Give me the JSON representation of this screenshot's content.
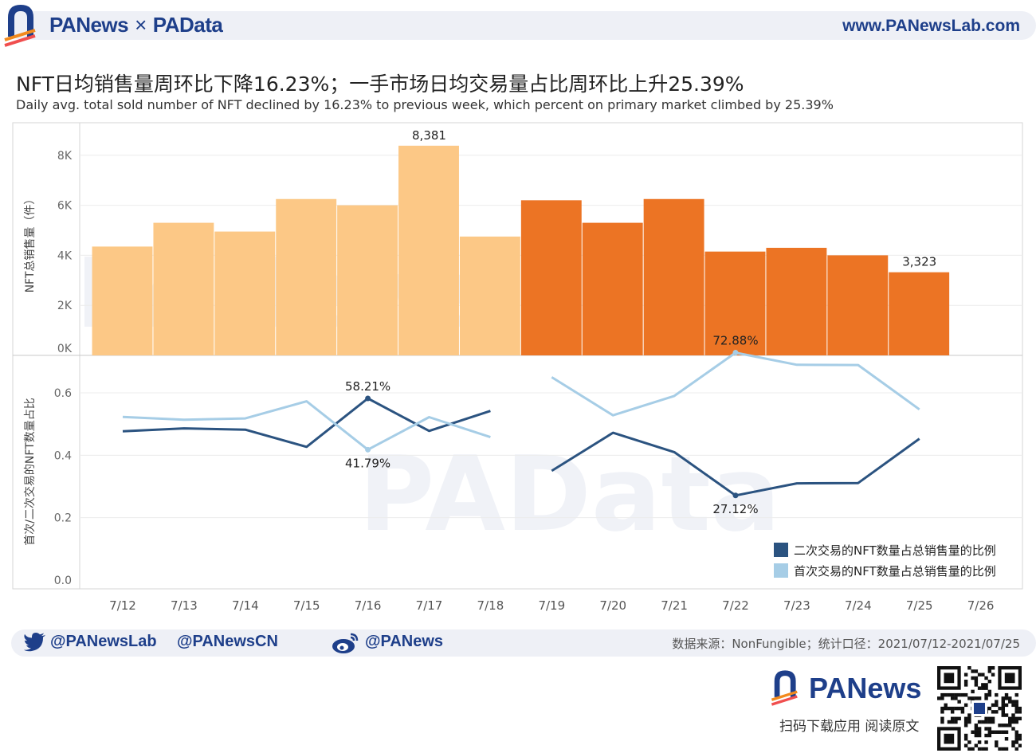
{
  "header": {
    "brand_left": "PANews",
    "brand_sep": "×",
    "brand_right": "PAData",
    "site": "www.PANewsLab.com"
  },
  "title_zh": "NFT日均销售量周环比下降16.23%；一手市场日均交易量占比周环比上升25.39%",
  "title_en": "Daily avg. total sold number of NFT declined by 16.23% to previous week, which percent on primary market climbed by 25.39%",
  "chart_data": [
    {
      "type": "bar",
      "categories": [
        "7/12",
        "7/13",
        "7/14",
        "7/15",
        "7/16",
        "7/17",
        "7/18",
        "7/19",
        "7/20",
        "7/21",
        "7/22",
        "7/23",
        "7/24",
        "7/25"
      ],
      "values": [
        4350,
        5300,
        4950,
        6250,
        6000,
        8381,
        4750,
        6200,
        5300,
        6250,
        4150,
        4300,
        4000,
        3323
      ],
      "colors": [
        "#fcc886",
        "#fcc886",
        "#fcc886",
        "#fcc886",
        "#fcc886",
        "#fcc886",
        "#fcc886",
        "#ec7424",
        "#ec7424",
        "#ec7424",
        "#ec7424",
        "#ec7424",
        "#ec7424",
        "#ec7424"
      ],
      "ylabel": "NFT总销售量（件）",
      "ylim": [
        0,
        9300
      ],
      "yticks": [
        0,
        2000,
        4000,
        6000,
        8000
      ],
      "ytick_labels": [
        "0K",
        "2K",
        "4K",
        "6K",
        "8K"
      ],
      "data_labels": [
        {
          "index": 5,
          "text": "8,381"
        },
        {
          "index": 13,
          "text": "3,323"
        }
      ]
    },
    {
      "type": "line",
      "categories": [
        "7/12",
        "7/13",
        "7/14",
        "7/15",
        "7/16",
        "7/17",
        "7/18",
        "7/19",
        "7/20",
        "7/21",
        "7/22",
        "7/23",
        "7/24",
        "7/25",
        "7/26"
      ],
      "x_axis_labels": [
        "7/12",
        "7/13",
        "7/14",
        "7/15",
        "7/16",
        "7/17",
        "7/18",
        "7/19",
        "7/20",
        "7/21",
        "7/22",
        "7/23",
        "7/24",
        "7/25",
        "7/26"
      ],
      "ylabel": "首次/二次交易的NFT数量占比",
      "ylim": [
        0,
        0.72
      ],
      "yticks": [
        0,
        0.2,
        0.4,
        0.6
      ],
      "ytick_labels": [
        "0.0",
        "0.2",
        "0.4",
        "0.6"
      ],
      "series": [
        {
          "name": "二次交易的NFT数量占总销售量的比例",
          "color": "#2b5380",
          "segments": [
            {
              "start": 0,
              "values": [
                0.477,
                0.486,
                0.482,
                0.427,
                0.5821,
                0.478,
                0.542
              ]
            },
            {
              "start": 7,
              "values": [
                0.35,
                0.472,
                0.41,
                0.2712,
                0.31,
                0.311,
                0.453
              ]
            }
          ]
        },
        {
          "name": "首次交易的NFT数量占总销售量的比例",
          "color": "#a6cde6",
          "segments": [
            {
              "start": 0,
              "values": [
                0.523,
                0.514,
                0.518,
                0.573,
                0.4179,
                0.522,
                0.458
              ]
            },
            {
              "start": 7,
              "values": [
                0.65,
                0.528,
                0.59,
                0.7288,
                0.69,
                0.689,
                0.547
              ]
            }
          ]
        }
      ],
      "data_labels": [
        {
          "series": 0,
          "index": 4,
          "text": "58.21%",
          "pos": "above"
        },
        {
          "series": 1,
          "index": 4,
          "text": "41.79%",
          "pos": "below"
        },
        {
          "series": 1,
          "index": 10,
          "text": "72.88%",
          "pos": "above"
        },
        {
          "series": 0,
          "index": 10,
          "text": "27.12%",
          "pos": "below"
        }
      ],
      "legend": "bottom-right"
    }
  ],
  "footer": {
    "twitter1": "@PANewsLab",
    "twitter2": "@PANewsCN",
    "weibo": "@PANews",
    "source": "数据来源：NonFungible；统计口径：2021/07/12-2021/07/25",
    "brand": "PANews",
    "scan": "扫码下载应用  阅读原文"
  }
}
